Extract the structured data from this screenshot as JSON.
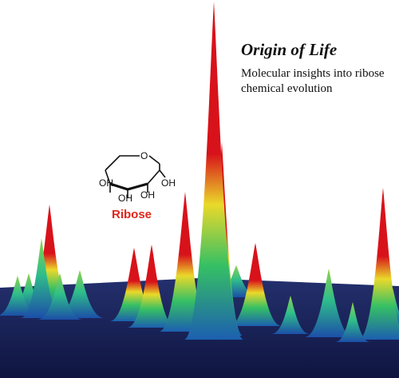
{
  "heading": {
    "title": "Origin of Life",
    "subtitle": "Molecular insights into ribose chemical evolution"
  },
  "structure": {
    "name": "Ribose",
    "ring_oxygen": "O",
    "hydroxyl_label": "OH",
    "label_color": "#e0261b"
  },
  "colors": {
    "base_plane": "#141b4e",
    "peak_low": "#1f3fa0",
    "peak_mid": "#2fbf6a",
    "peak_upper": "#e8e02a",
    "peak_top": "#d8121a"
  }
}
